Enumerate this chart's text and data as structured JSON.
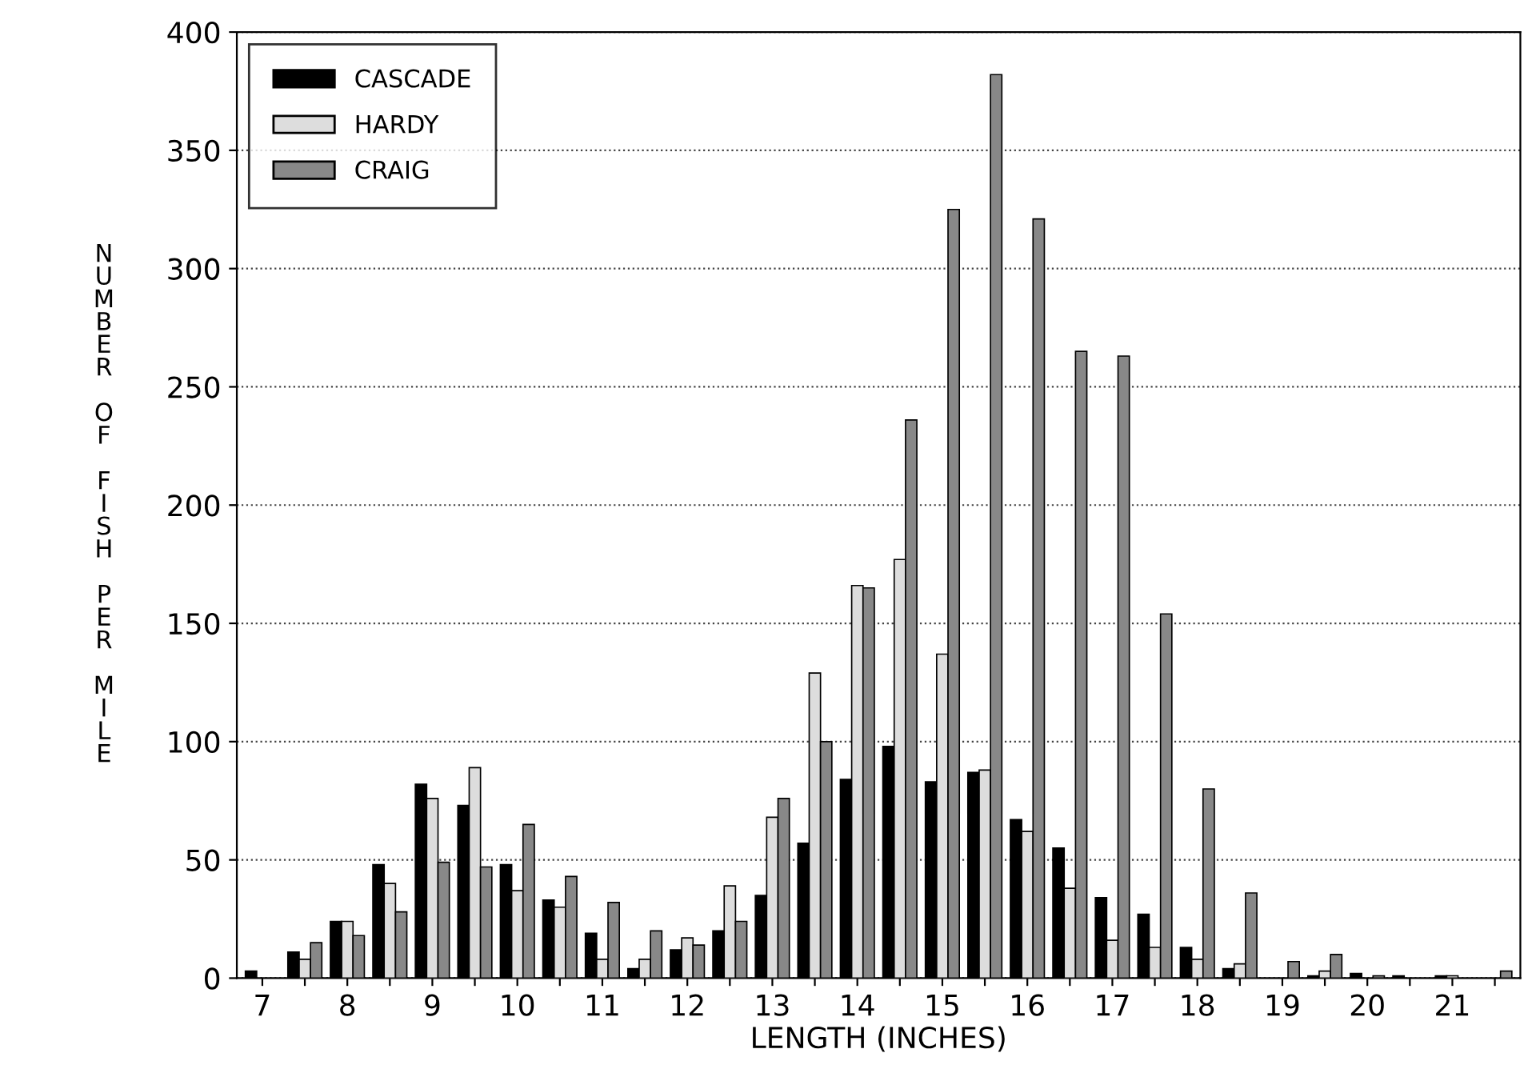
{
  "chart_data": {
    "type": "bar",
    "xlabel": "LENGTH (INCHES)",
    "ylabel": "NUMBER OF FISH PER MILE",
    "categories": [
      "7",
      null,
      "8",
      null,
      "9",
      null,
      "10",
      null,
      "11",
      null,
      "12",
      null,
      "13",
      null,
      "14",
      null,
      "15",
      null,
      "16",
      null,
      "17",
      null,
      "18",
      null,
      "19",
      null,
      "20",
      null,
      "21",
      null
    ],
    "series": [
      {
        "name": "CASCADE",
        "color": "#000000",
        "values": [
          3,
          11,
          24,
          48,
          82,
          73,
          48,
          33,
          19,
          4,
          12,
          20,
          35,
          57,
          84,
          98,
          83,
          87,
          67,
          55,
          34,
          27,
          13,
          4,
          0,
          1,
          2,
          1,
          1,
          0
        ]
      },
      {
        "name": "HARDY",
        "color": "#dddddd",
        "values": [
          0,
          8,
          24,
          40,
          76,
          89,
          37,
          30,
          8,
          8,
          17,
          39,
          68,
          129,
          166,
          177,
          137,
          88,
          62,
          38,
          16,
          13,
          8,
          6,
          0,
          3,
          0,
          0,
          1,
          0
        ]
      },
      {
        "name": "CRAIG",
        "color": "#888888",
        "values": [
          0,
          15,
          18,
          28,
          49,
          47,
          65,
          43,
          32,
          20,
          14,
          24,
          76,
          100,
          165,
          236,
          325,
          382,
          321,
          265,
          263,
          154,
          80,
          36,
          7,
          10,
          1,
          0,
          0,
          3
        ]
      }
    ],
    "ylim": [
      0,
      400
    ],
    "yticks": [
      0,
      50,
      100,
      150,
      200,
      250,
      300,
      350,
      400
    ],
    "grid": "y",
    "legend": "top left"
  }
}
